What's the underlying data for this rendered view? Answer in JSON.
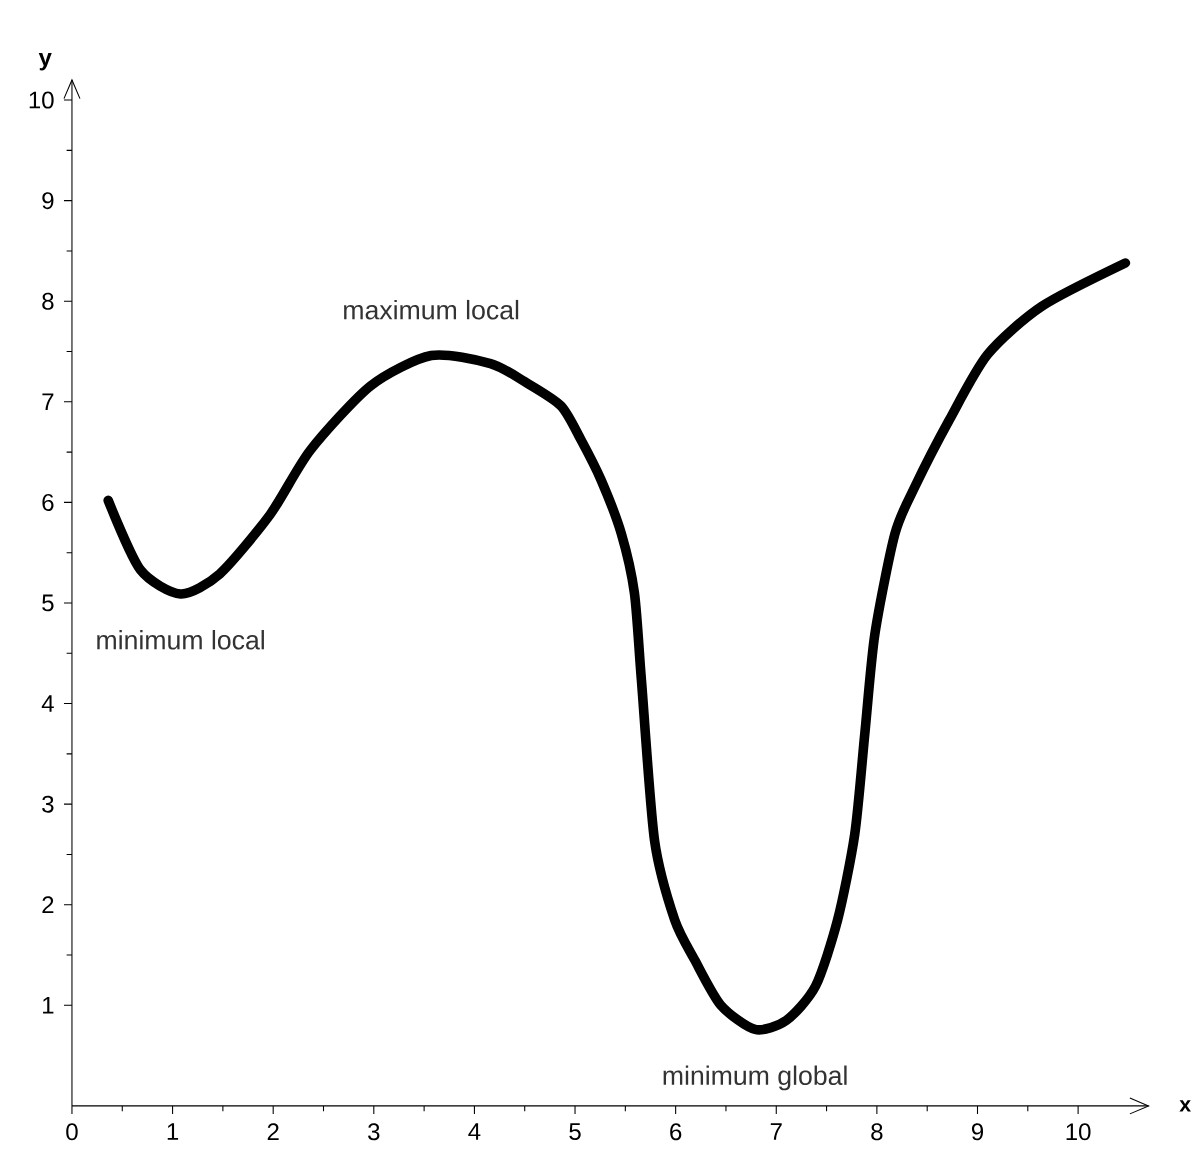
{
  "chart_data": {
    "type": "line",
    "xlabel": "x",
    "ylabel": "y",
    "xlim": [
      0,
      10.7
    ],
    "ylim": [
      0,
      10.2
    ],
    "xticks": [
      0,
      1,
      2,
      3,
      4,
      5,
      6,
      7,
      8,
      9,
      10
    ],
    "yticks": [
      1,
      2,
      3,
      4,
      5,
      6,
      7,
      8,
      9,
      10
    ],
    "grid": false,
    "marker": "none",
    "line_style": "solid",
    "series": [
      {
        "color": "#000000",
        "x": [
          0.36,
          0.68,
          1.08,
          1.47,
          1.97,
          2.37,
          2.97,
          3.57,
          4.16,
          4.5,
          4.86,
          5.06,
          5.26,
          5.46,
          5.59,
          5.66,
          5.79,
          5.99,
          6.19,
          6.45,
          6.79,
          7.1,
          7.39,
          7.61,
          7.78,
          7.88,
          7.98,
          8.18,
          8.38,
          8.72,
          9.1,
          9.64,
          10.47
        ],
        "values": [
          6.02,
          5.33,
          5.09,
          5.29,
          5.88,
          6.52,
          7.16,
          7.46,
          7.38,
          7.2,
          6.96,
          6.62,
          6.22,
          5.69,
          5.1,
          4.23,
          2.64,
          1.85,
          1.45,
          1.0,
          0.76,
          0.85,
          1.19,
          1.85,
          2.7,
          3.7,
          4.69,
          5.69,
          6.16,
          6.82,
          7.47,
          7.95,
          8.38
        ]
      }
    ],
    "annotations": [
      {
        "text": "minimum local",
        "x": 1.08,
        "y": 5.09
      },
      {
        "text": "maximum local",
        "x": 3.57,
        "y": 7.46
      },
      {
        "text": "minimum global",
        "x": 6.79,
        "y": 0.76
      }
    ]
  }
}
